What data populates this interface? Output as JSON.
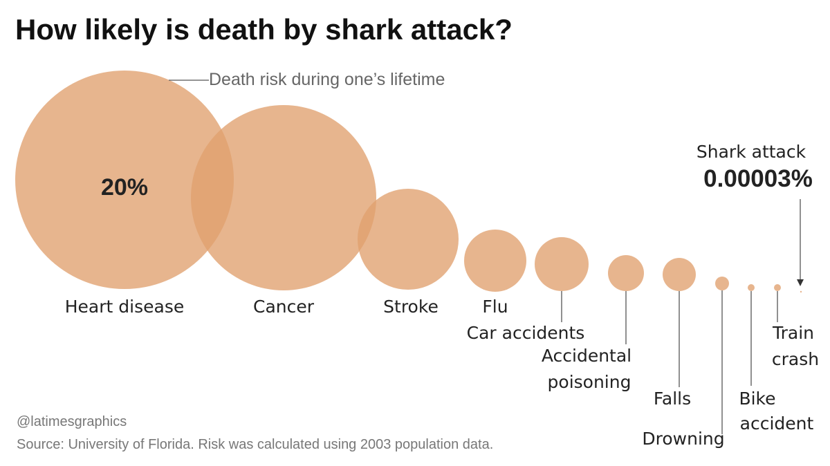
{
  "chart_data": {
    "type": "bubble",
    "title": "How likely is death by shark attack?",
    "size_legend": "Death risk during one’s lifetime",
    "highlight_value": "20%",
    "bubble_color": "#e0a06e",
    "items": [
      {
        "label_lines": [
          "Heart disease"
        ]
      },
      {
        "label_lines": [
          "Cancer"
        ]
      },
      {
        "label_lines": [
          "Stroke"
        ]
      },
      {
        "label_lines": [
          "Flu"
        ]
      },
      {
        "label_lines": [
          "Car accidents"
        ]
      },
      {
        "label_lines": [
          "Accidental",
          "poisoning"
        ]
      },
      {
        "label_lines": [
          "Falls"
        ]
      },
      {
        "label_lines": [
          "Drowning"
        ]
      },
      {
        "label_lines": [
          "Bike",
          "accident"
        ]
      },
      {
        "label_lines": [
          "Train",
          "crash"
        ]
      },
      {
        "label_lines": [
          "Shark attack"
        ],
        "value_label": "0.00003%"
      }
    ]
  },
  "footer": {
    "credit": "@latimesgraphics",
    "source": "Source: University of Florida. Risk was calculated using 2003 population data."
  }
}
